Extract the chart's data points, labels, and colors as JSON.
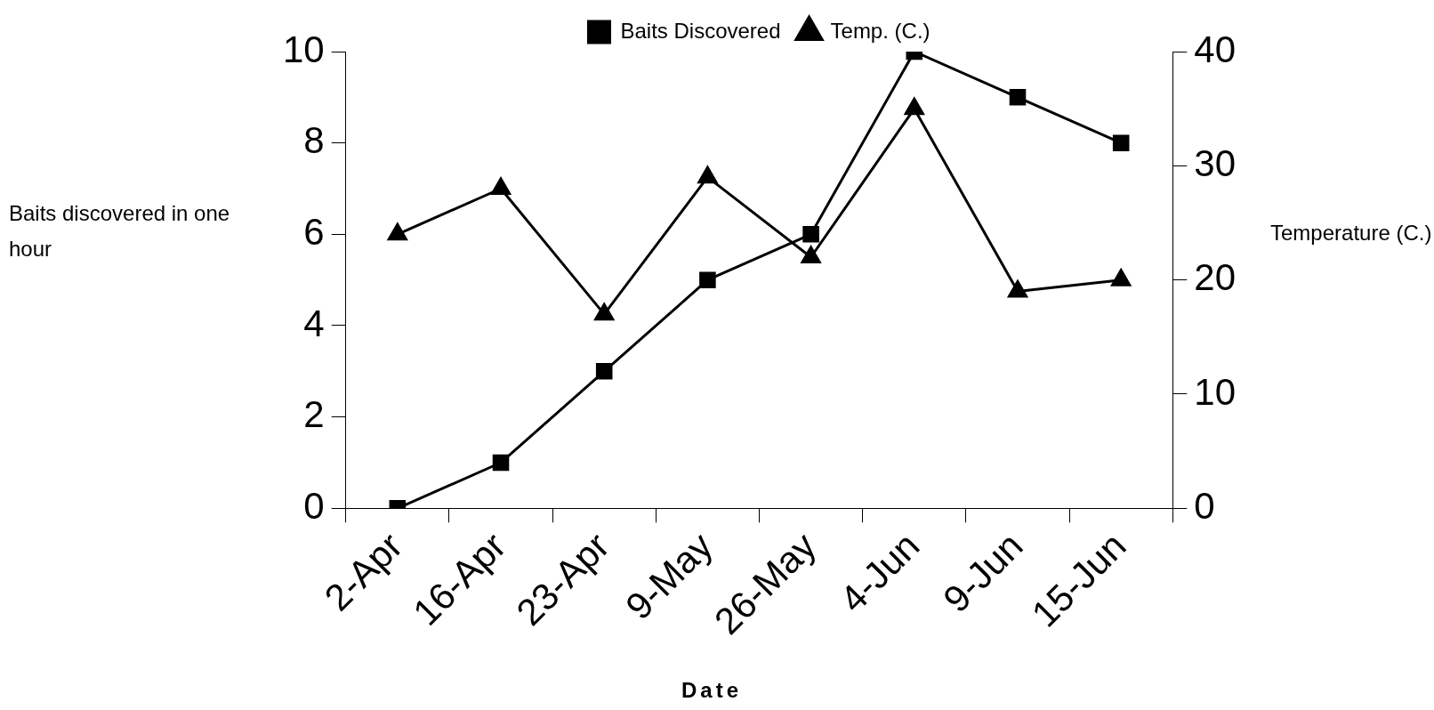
{
  "chart_data": {
    "type": "line",
    "xlabel": "Date",
    "ylabel": "Baits discovered in one hour",
    "y2label": "Temperature (C.)",
    "categories": [
      "2-Apr",
      "16-Apr",
      "23-Apr",
      "9-May",
      "26-May",
      "4-Jun",
      "9-Jun",
      "15-Jun"
    ],
    "series": [
      {
        "name": "Baits Discovered",
        "color": "#000000",
        "marker": "square",
        "values": [
          0,
          1,
          3,
          5,
          6,
          10,
          9,
          8
        ]
      },
      {
        "name": "Temp. (C.)",
        "color": "#000000",
        "marker": "triangle",
        "axis": "y2",
        "values": [
          24,
          28,
          17,
          29,
          22,
          35,
          19,
          20
        ]
      }
    ],
    "ylim": [
      0,
      10
    ],
    "yticks": [
      0,
      2,
      4,
      6,
      8,
      10
    ],
    "y2lim": [
      0,
      40
    ],
    "y2ticks": [
      0,
      10,
      20,
      30,
      40
    ],
    "legend": "top",
    "grid": false,
    "line_style": "solid"
  }
}
